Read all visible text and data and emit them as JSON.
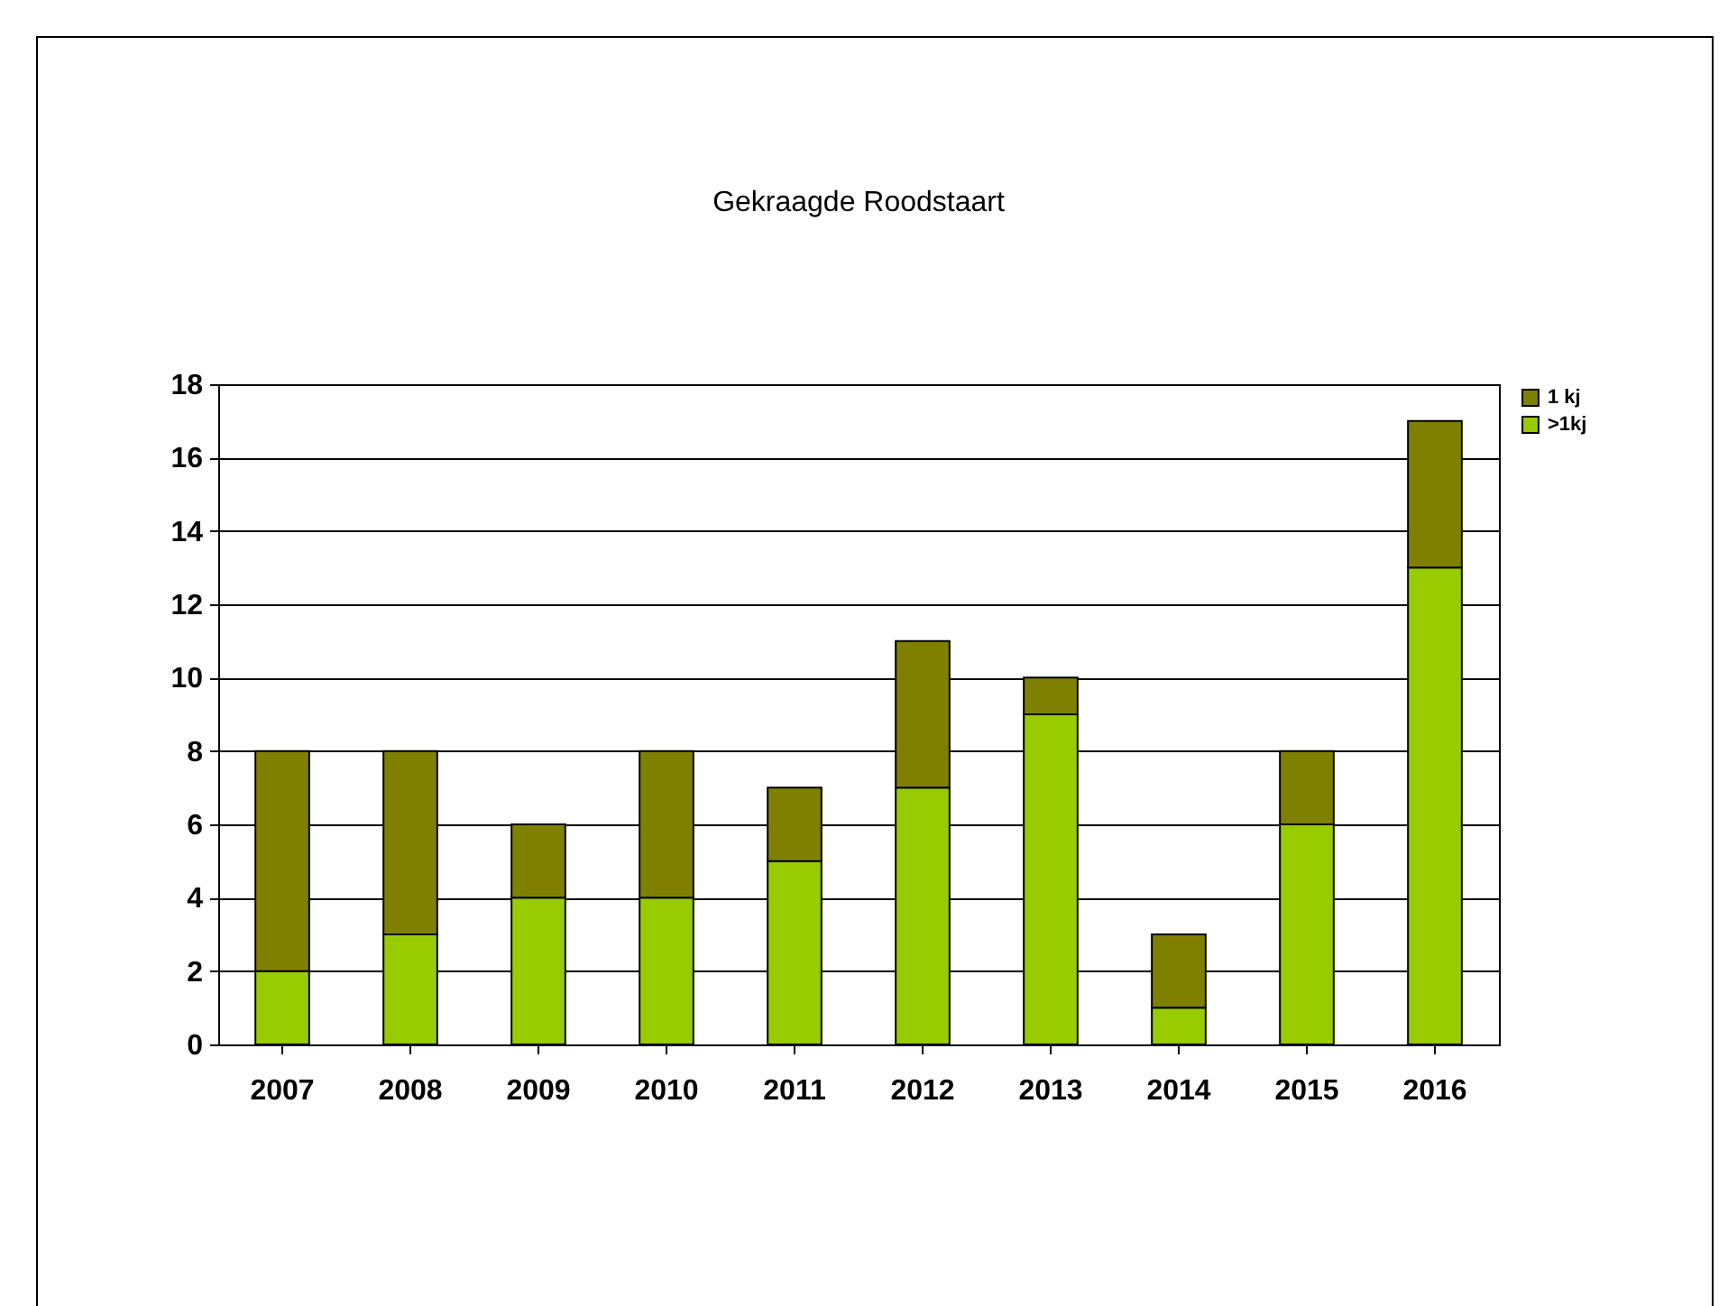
{
  "chart_data": {
    "type": "bar",
    "title": "Gekraagde Roodstaart",
    "stacked": true,
    "categories": [
      "2007",
      "2008",
      "2009",
      "2010",
      "2011",
      "2012",
      "2013",
      "2014",
      "2015",
      "2016"
    ],
    "series": [
      {
        "name": ">1kj",
        "color": "#99cc00",
        "values": [
          2,
          3,
          4,
          4,
          5,
          7,
          9,
          1,
          6,
          13
        ]
      },
      {
        "name": "1 kj",
        "color": "#808000",
        "values": [
          6,
          5,
          2,
          4,
          2,
          4,
          1,
          2,
          2,
          4
        ]
      }
    ],
    "ylim": [
      0,
      18
    ],
    "yticks": [
      0,
      2,
      4,
      6,
      8,
      10,
      12,
      14,
      16,
      18
    ],
    "grid": "y",
    "legend": "top right"
  }
}
